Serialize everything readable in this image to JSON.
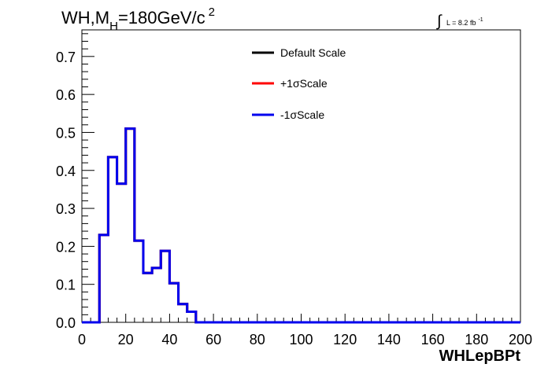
{
  "header": {
    "title_main": "WH,M",
    "title_sub": "H",
    "title_rest": "=180GeV/c",
    "title_sup": "2",
    "lumi_prefix": "L = 8.2 fb",
    "lumi_sup": "-1"
  },
  "chart_data": {
    "type": "line",
    "xlabel": "WHLepBPt",
    "ylabel": "",
    "xlim": [
      0,
      200
    ],
    "ylim": [
      0,
      0.77
    ],
    "x_ticks": [
      0,
      20,
      40,
      60,
      80,
      100,
      120,
      140,
      160,
      180,
      200
    ],
    "x_tick_labels": [
      "0",
      "20",
      "40",
      "60",
      "80",
      "100",
      "120",
      "140",
      "160",
      "180",
      "200"
    ],
    "y_ticks": [
      0.0,
      0.1,
      0.2,
      0.3,
      0.4,
      0.5,
      0.6,
      0.7
    ],
    "y_tick_labels": [
      "0.0",
      "0.1",
      "0.2",
      "0.3",
      "0.4",
      "0.5",
      "0.6",
      "0.7"
    ],
    "grid": false,
    "legend_position": "top-center",
    "bin_edges": [
      0,
      4,
      8,
      12,
      16,
      20,
      24,
      28,
      32,
      36,
      40,
      44,
      48,
      52,
      56,
      60,
      64,
      68,
      72,
      76,
      80,
      84,
      88,
      92,
      96,
      100,
      104,
      108,
      112,
      116,
      120,
      124,
      128,
      132,
      136,
      140,
      144,
      148,
      152,
      156,
      160,
      164,
      168,
      172,
      176,
      180,
      184,
      188,
      192,
      196,
      200
    ],
    "series": [
      {
        "name": "Default Scale",
        "color": "#000000",
        "values": [
          0,
          0,
          0.23,
          0.435,
          0.365,
          0.51,
          0.215,
          0.13,
          0.143,
          0.188,
          0.103,
          0.048,
          0.028,
          0,
          0,
          0,
          0,
          0,
          0,
          0,
          0,
          0,
          0,
          0,
          0,
          0,
          0,
          0,
          0,
          0,
          0,
          0,
          0,
          0,
          0,
          0,
          0,
          0,
          0,
          0,
          0,
          0,
          0,
          0,
          0,
          0,
          0,
          0,
          0,
          0
        ]
      },
      {
        "name": "+1σScale",
        "color": "#ff0000",
        "values": [
          0,
          0,
          0.23,
          0.435,
          0.365,
          0.51,
          0.215,
          0.13,
          0.143,
          0.188,
          0.103,
          0.048,
          0.028,
          0,
          0,
          0,
          0,
          0,
          0,
          0,
          0,
          0,
          0,
          0,
          0,
          0,
          0,
          0,
          0,
          0,
          0,
          0,
          0,
          0,
          0,
          0,
          0,
          0,
          0,
          0,
          0,
          0,
          0,
          0,
          0,
          0,
          0,
          0,
          0,
          0
        ]
      },
      {
        "name": "-1σScale",
        "color": "#0000ee",
        "values": [
          0,
          0,
          0.23,
          0.435,
          0.365,
          0.51,
          0.215,
          0.13,
          0.143,
          0.188,
          0.103,
          0.048,
          0.028,
          0,
          0,
          0,
          0,
          0,
          0,
          0,
          0,
          0,
          0,
          0,
          0,
          0,
          0,
          0,
          0,
          0,
          0,
          0,
          0,
          0,
          0,
          0,
          0,
          0,
          0,
          0,
          0,
          0,
          0,
          0,
          0,
          0,
          0,
          0,
          0,
          0
        ]
      }
    ]
  }
}
